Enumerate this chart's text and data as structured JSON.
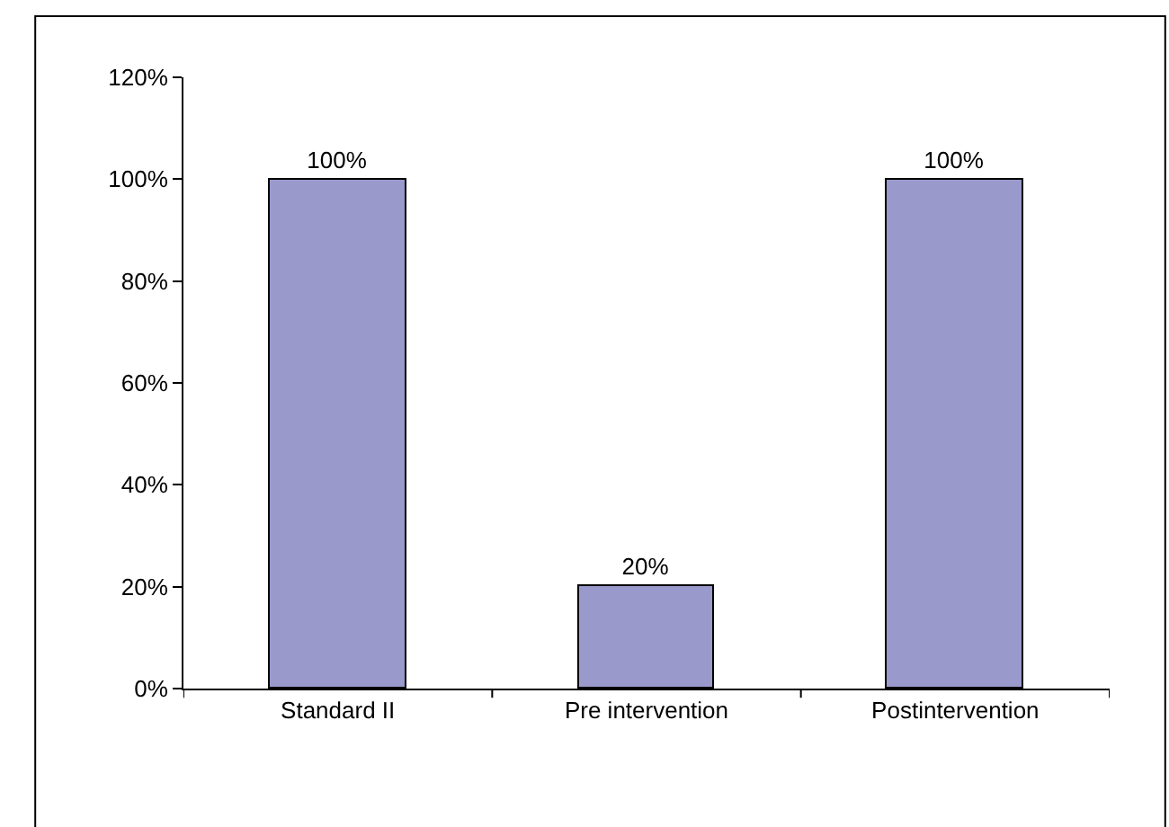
{
  "chart_data": {
    "type": "bar",
    "categories": [
      "Standard II",
      "Pre intervention",
      "Postintervention"
    ],
    "values": [
      100,
      20,
      100
    ],
    "color": "#9999cc",
    "value_labels": [
      "100%",
      "20%",
      "100%"
    ],
    "ylim": [
      0,
      120
    ],
    "yticks": [
      {
        "value": 0,
        "label": "0%"
      },
      {
        "value": 20,
        "label": "20%"
      },
      {
        "value": 40,
        "label": "40%"
      },
      {
        "value": 60,
        "label": "60%"
      },
      {
        "value": 80,
        "label": "80%"
      },
      {
        "value": 100,
        "label": "100%"
      },
      {
        "value": 120,
        "label": "120%"
      }
    ],
    "grid": false,
    "legend": false
  }
}
